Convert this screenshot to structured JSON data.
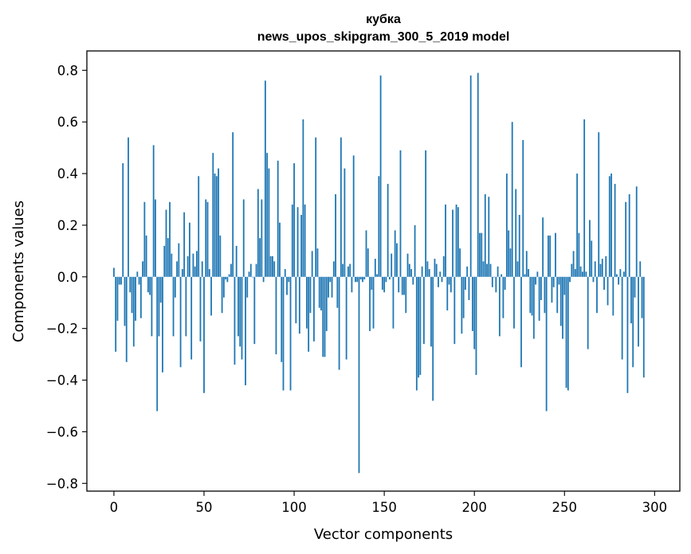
{
  "chart_data": {
    "type": "bar",
    "title_lines": [
      "кубка",
      "news_upos_skipgram_300_5_2019 model"
    ],
    "xlabel": "Vector components",
    "ylabel": "Components values",
    "xlim": [
      -15,
      314
    ],
    "ylim": [
      -0.83,
      0.875
    ],
    "xticks": [
      0,
      50,
      100,
      150,
      200,
      250,
      300
    ],
    "xtick_labels": [
      "0",
      "50",
      "100",
      "150",
      "200",
      "250",
      "300"
    ],
    "yticks": [
      -0.8,
      -0.6,
      -0.4,
      -0.2,
      0.0,
      0.2,
      0.4,
      0.6,
      0.8
    ],
    "ytick_labels": [
      "−0.8",
      "−0.6",
      "−0.4",
      "−0.2",
      "0.0",
      "0.2",
      "0.4",
      "0.6",
      "0.8"
    ],
    "grid": false,
    "color": "#1f77b4",
    "values": [
      0.035,
      -0.29,
      -0.17,
      -0.03,
      -0.03,
      0.44,
      -0.19,
      -0.33,
      0.54,
      -0.06,
      -0.14,
      -0.27,
      -0.17,
      0.02,
      -0.03,
      -0.16,
      0.06,
      0.29,
      0.16,
      -0.06,
      -0.07,
      -0.23,
      0.51,
      0.3,
      -0.52,
      -0.23,
      -0.1,
      -0.37,
      0.12,
      0.26,
      0.15,
      0.29,
      0.09,
      -0.23,
      -0.08,
      0.06,
      0.13,
      -0.35,
      0.03,
      0.25,
      -0.23,
      0.08,
      0.21,
      -0.32,
      0.09,
      0.04,
      0.1,
      0.39,
      -0.25,
      0.06,
      -0.45,
      0.3,
      0.29,
      0.03,
      -0.15,
      0.48,
      0.4,
      0.39,
      0.42,
      0.16,
      -0.14,
      -0.08,
      -0.01,
      -0.02,
      0.01,
      0.05,
      0.56,
      -0.34,
      0.12,
      -0.23,
      -0.27,
      -0.32,
      0.3,
      -0.42,
      -0.08,
      0.02,
      0.05,
      0.0,
      -0.26,
      0.05,
      0.34,
      0.15,
      0.3,
      -0.02,
      0.76,
      0.48,
      0.42,
      0.08,
      0.08,
      0.06,
      -0.3,
      0.45,
      0.21,
      -0.33,
      -0.44,
      0.03,
      -0.07,
      -0.02,
      -0.44,
      0.28,
      0.44,
      -0.18,
      0.27,
      -0.22,
      0.24,
      0.61,
      0.28,
      -0.2,
      -0.29,
      -0.14,
      0.1,
      -0.25,
      0.54,
      0.11,
      -0.12,
      -0.13,
      -0.31,
      -0.31,
      -0.21,
      -0.08,
      -0.02,
      -0.08,
      0.06,
      0.32,
      -0.12,
      -0.36,
      0.54,
      0.05,
      0.42,
      -0.32,
      0.04,
      0.05,
      -0.06,
      0.47,
      -0.02,
      -0.02,
      -0.76,
      -0.01,
      -0.02,
      -0.01,
      0.18,
      0.11,
      -0.21,
      -0.05,
      -0.2,
      0.07,
      0.01,
      0.39,
      0.78,
      -0.05,
      -0.06,
      -0.02,
      0.36,
      -0.01,
      0.09,
      -0.2,
      0.18,
      0.13,
      -0.06,
      0.49,
      -0.07,
      -0.07,
      -0.14,
      0.09,
      0.05,
      0.03,
      -0.03,
      0.2,
      -0.44,
      -0.39,
      -0.38,
      0.04,
      -0.26,
      0.49,
      0.06,
      0.03,
      -0.27,
      -0.48,
      0.07,
      0.05,
      -0.04,
      0.02,
      -0.02,
      0.08,
      0.28,
      -0.13,
      -0.03,
      -0.06,
      0.26,
      -0.26,
      0.28,
      0.27,
      0.11,
      -0.22,
      -0.16,
      -0.05,
      0.04,
      -0.09,
      0.78,
      -0.21,
      -0.28,
      -0.38,
      0.79,
      0.17,
      0.17,
      0.06,
      0.32,
      0.05,
      0.31,
      0.05,
      -0.04,
      0.0,
      -0.06,
      0.04,
      -0.23,
      0.01,
      -0.16,
      -0.05,
      0.4,
      0.18,
      0.11,
      0.6,
      -0.2,
      0.34,
      0.06,
      0.24,
      -0.35,
      0.53,
      0.01,
      0.1,
      0.03,
      -0.14,
      -0.15,
      -0.24,
      -0.03,
      0.02,
      -0.17,
      -0.09,
      0.23,
      -0.14,
      -0.52,
      0.16,
      0.16,
      -0.1,
      -0.04,
      0.17,
      -0.14,
      -0.03,
      -0.19,
      -0.24,
      -0.07,
      -0.43,
      -0.44,
      -0.02,
      0.05,
      0.1,
      0.03,
      0.4,
      0.17,
      0.04,
      0.02,
      0.61,
      0.02,
      -0.28,
      0.22,
      0.14,
      -0.02,
      0.06,
      -0.14,
      0.56,
      0.05,
      0.07,
      -0.05,
      0.08,
      -0.11,
      0.39,
      0.4,
      -0.15,
      0.36,
      0.01,
      -0.03,
      0.03,
      -0.32,
      0.02,
      0.29,
      -0.45,
      0.32,
      -0.18,
      -0.35,
      -0.08,
      0.35,
      -0.27,
      0.06,
      -0.16,
      -0.39
    ]
  }
}
